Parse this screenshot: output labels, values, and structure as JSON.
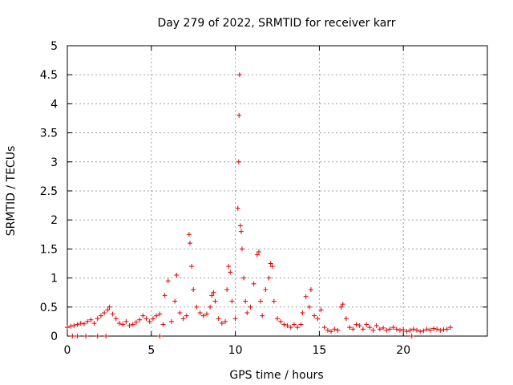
{
  "chart_data": {
    "type": "scatter",
    "title": "Day 279 of 2022, SRMTID for receiver karr",
    "xlabel": "GPS time / hours",
    "ylabel": "SRMTID / TECUs",
    "xlim": [
      0,
      25
    ],
    "ylim": [
      0,
      5
    ],
    "xticks": [
      0,
      5,
      10,
      15,
      20
    ],
    "xtick_labels": [
      "0",
      "5",
      "10",
      "15",
      "20"
    ],
    "yticks": [
      0,
      0.5,
      1,
      1.5,
      2,
      2.5,
      3,
      3.5,
      4,
      4.5,
      5
    ],
    "ytick_labels": [
      "0",
      "0.5",
      "1",
      "1.5",
      "2",
      "2.5",
      "3",
      "3.5",
      "4",
      "4.5",
      "5"
    ],
    "grid": true,
    "marker": "+",
    "color": "#e00000",
    "series": [
      {
        "name": "SRMTID",
        "x": [
          0.0,
          0.2,
          0.4,
          0.6,
          0.8,
          1.0,
          1.2,
          1.4,
          1.6,
          1.8,
          2.0,
          2.2,
          2.4,
          2.5,
          2.7,
          2.9,
          3.1,
          3.3,
          3.5,
          3.7,
          3.9,
          4.1,
          4.3,
          4.5,
          4.7,
          4.9,
          5.1,
          5.3,
          5.5,
          5.7,
          5.8,
          6.0,
          6.2,
          6.4,
          6.5,
          6.7,
          6.9,
          7.1,
          7.25,
          7.3,
          7.4,
          7.5,
          7.7,
          7.9,
          8.1,
          8.3,
          8.5,
          8.6,
          8.7,
          8.8,
          9.0,
          9.2,
          9.4,
          9.5,
          9.6,
          9.7,
          9.8,
          10.0,
          10.15,
          10.2,
          10.22,
          10.25,
          10.3,
          10.35,
          10.4,
          10.5,
          10.6,
          10.7,
          10.9,
          11.1,
          11.3,
          11.4,
          11.5,
          11.6,
          11.8,
          12.0,
          12.1,
          12.2,
          12.3,
          12.5,
          12.7,
          12.9,
          13.1,
          13.3,
          13.5,
          13.7,
          13.9,
          14.0,
          14.2,
          14.4,
          14.5,
          14.7,
          14.9,
          15.1,
          15.3,
          15.5,
          15.7,
          15.9,
          16.1,
          16.3,
          16.4,
          16.6,
          16.8,
          17.0,
          17.2,
          17.4,
          17.6,
          17.8,
          18.0,
          18.2,
          18.4,
          18.6,
          18.8,
          19.0,
          19.2,
          19.4,
          19.6,
          19.8,
          20.0,
          20.2,
          20.4,
          20.6,
          20.8,
          21.0,
          21.2,
          21.4,
          21.6,
          21.8,
          22.0,
          22.2,
          22.4,
          22.6,
          22.8,
          0.3,
          0.6,
          1.1,
          1.8,
          2.3,
          5.5,
          20.5
        ],
        "y": [
          0.15,
          0.17,
          0.18,
          0.2,
          0.22,
          0.21,
          0.25,
          0.28,
          0.22,
          0.3,
          0.35,
          0.4,
          0.45,
          0.5,
          0.38,
          0.3,
          0.22,
          0.2,
          0.25,
          0.18,
          0.2,
          0.24,
          0.28,
          0.35,
          0.3,
          0.25,
          0.3,
          0.35,
          0.38,
          0.2,
          0.7,
          0.95,
          0.25,
          0.6,
          1.05,
          0.4,
          0.3,
          0.35,
          1.75,
          1.6,
          1.2,
          0.8,
          0.5,
          0.4,
          0.35,
          0.38,
          0.5,
          0.7,
          0.75,
          0.6,
          0.3,
          0.22,
          0.25,
          0.8,
          1.2,
          1.1,
          0.6,
          0.3,
          2.2,
          3.0,
          3.8,
          4.5,
          1.9,
          1.8,
          1.5,
          1.0,
          0.6,
          0.4,
          0.5,
          0.9,
          1.4,
          1.45,
          0.6,
          0.35,
          0.8,
          1.0,
          1.25,
          1.2,
          0.6,
          0.3,
          0.25,
          0.2,
          0.18,
          0.15,
          0.2,
          0.15,
          0.2,
          0.4,
          0.68,
          0.5,
          0.8,
          0.35,
          0.3,
          0.45,
          0.15,
          0.1,
          0.08,
          0.12,
          0.1,
          0.5,
          0.55,
          0.3,
          0.15,
          0.12,
          0.2,
          0.18,
          0.12,
          0.2,
          0.15,
          0.1,
          0.18,
          0.12,
          0.14,
          0.1,
          0.12,
          0.15,
          0.12,
          0.1,
          0.11,
          0.08,
          0.1,
          0.12,
          0.1,
          0.08,
          0.09,
          0.12,
          0.1,
          0.13,
          0.12,
          0.1,
          0.11,
          0.12,
          0.15,
          0.0,
          0.0,
          0.0,
          0.0,
          0.0,
          0.0,
          0.0
        ]
      }
    ]
  }
}
